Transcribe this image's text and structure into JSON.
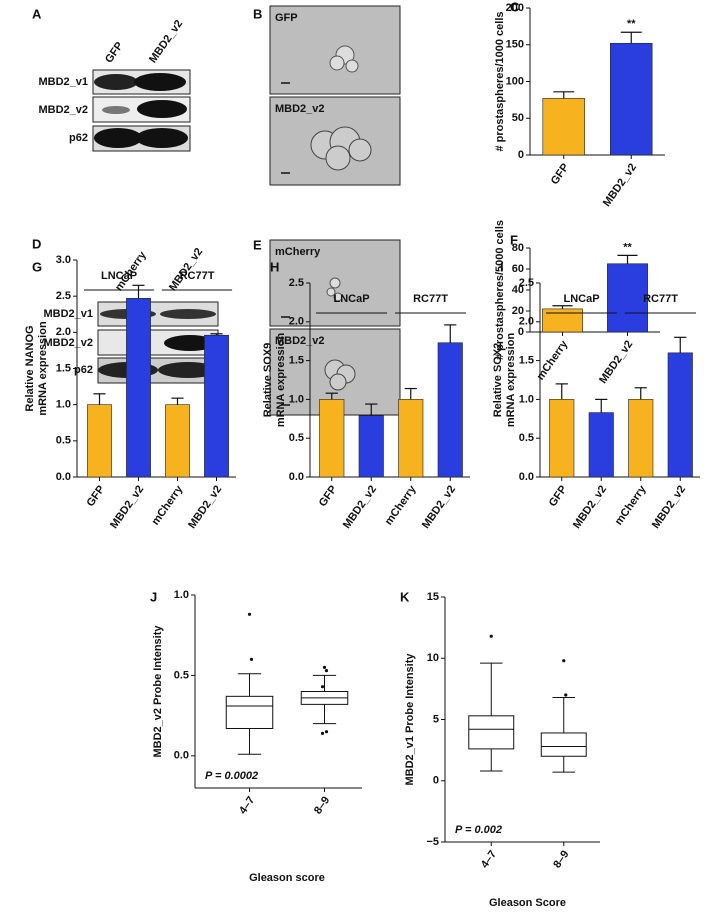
{
  "figure": {
    "blots": [
      {
        "panel": "A",
        "lanes": [
          "GFP",
          "MBD2_v2"
        ],
        "rows": [
          "MBD2_v1",
          "MBD2_v2",
          "p62"
        ]
      },
      {
        "panel": "D",
        "lanes": [
          "mCherry",
          "MBD2_v2"
        ],
        "rows": [
          "MBD2_v1",
          "MBD2_v2",
          "p62"
        ]
      }
    ],
    "images": [
      {
        "panel": "B",
        "labels": [
          "GFP",
          "MBD2_v2"
        ]
      },
      {
        "panel": "E",
        "labels": [
          "mCherry",
          "MBD2_v2"
        ]
      }
    ]
  },
  "chart_data": [
    {
      "panel": "C",
      "type": "bar",
      "ylabel": "# prostaspheres/1000 cells",
      "categories": [
        "GFP",
        "MBD2_v2"
      ],
      "values": [
        77,
        152
      ],
      "errors": [
        9,
        15
      ],
      "colors": [
        "#f7b21f",
        "#2a3ee0"
      ],
      "significance": [
        null,
        "**"
      ],
      "ylim": [
        0,
        200
      ],
      "yticks": [
        0,
        50,
        100,
        150,
        200
      ]
    },
    {
      "panel": "F",
      "type": "bar",
      "ylabel": "# prostaspheres/5000 cells",
      "categories": [
        "mCherry",
        "MBD2_v2"
      ],
      "values": [
        22,
        65
      ],
      "errors": [
        3,
        8
      ],
      "colors": [
        "#f7b21f",
        "#2a3ee0"
      ],
      "significance": [
        null,
        "**"
      ],
      "ylim": [
        0,
        80
      ],
      "yticks": [
        0,
        20,
        40,
        60,
        80
      ]
    },
    {
      "panel": "G",
      "type": "bar",
      "ylabel": [
        "Relative NANOG",
        "mRNA expression"
      ],
      "groups": [
        "LNCaP",
        "RC77T"
      ],
      "categories": [
        "GFP",
        "MBD2_v2",
        "mCherry",
        "MBD2_v2"
      ],
      "values": [
        1.0,
        2.47,
        1.0,
        1.96
      ],
      "errors": [
        0.15,
        0.18,
        0.09,
        0.02
      ],
      "colors": [
        "#f7b21f",
        "#2a3ee0",
        "#f7b21f",
        "#2a3ee0"
      ],
      "ylim": [
        0,
        3
      ],
      "yticks": [
        {
          "value": 0,
          "label": "0.0"
        },
        {
          "value": 0.5,
          "label": "0.5"
        },
        {
          "value": 1,
          "label": "1.0"
        },
        {
          "value": 1.5,
          "label": "1.5"
        },
        {
          "value": 2,
          "label": "2.0"
        },
        {
          "value": 2.5,
          "label": "2.5"
        },
        {
          "value": 3,
          "label": "3.0"
        }
      ]
    },
    {
      "panel": "H",
      "type": "bar",
      "ylabel": [
        "Relative SOX9",
        "mRNA expression"
      ],
      "groups": [
        "LNCaP",
        "RC77T"
      ],
      "categories": [
        "GFP",
        "MBD2_v2",
        "mCherry",
        "MBD2_v2"
      ],
      "values": [
        1.0,
        0.79,
        1.0,
        1.73
      ],
      "errors": [
        0.08,
        0.15,
        0.14,
        0.23
      ],
      "colors": [
        "#f7b21f",
        "#2a3ee0",
        "#f7b21f",
        "#2a3ee0"
      ],
      "ylim": [
        0,
        2.5
      ],
      "yticks": [
        {
          "value": 0,
          "label": "0.0"
        },
        {
          "value": 0.5,
          "label": "0.5"
        },
        {
          "value": 1,
          "label": "1.0"
        },
        {
          "value": 1.5,
          "label": "1.5"
        },
        {
          "value": 2,
          "label": "2.0"
        },
        {
          "value": 2.5,
          "label": "2.5"
        }
      ]
    },
    {
      "panel": "I",
      "type": "bar",
      "ylabel": [
        "Relative SOX2",
        "mRNA expression"
      ],
      "groups": [
        "LNCaP",
        "RC77T"
      ],
      "categories": [
        "GFP",
        "MBD2_v2",
        "mCherry",
        "MBD2_v2"
      ],
      "values": [
        1.0,
        0.83,
        1.0,
        1.6
      ],
      "errors": [
        0.2,
        0.17,
        0.15,
        0.2
      ],
      "colors": [
        "#f7b21f",
        "#2a3ee0",
        "#f7b21f",
        "#2a3ee0"
      ],
      "ylim": [
        0,
        2.5
      ],
      "yticks": [
        {
          "value": 0,
          "label": "0.0"
        },
        {
          "value": 0.5,
          "label": "0.5"
        },
        {
          "value": 1,
          "label": "1.0"
        },
        {
          "value": 1.5,
          "label": "1.5"
        },
        {
          "value": 2,
          "label": "2.0"
        },
        {
          "value": 2.5,
          "label": "2.5"
        }
      ]
    },
    {
      "panel": "J",
      "type": "box",
      "ylabel": "MBD2_v2 Probe Intensity",
      "xlabel": "Gleason score",
      "annotation": "P = 0.0002",
      "categories": [
        "4–7",
        "8–9"
      ],
      "boxes": [
        {
          "whislo": 0.01,
          "q1": 0.17,
          "med": 0.31,
          "q3": 0.37,
          "whishi": 0.51,
          "fliers": [
            0.88,
            0.6
          ]
        },
        {
          "whislo": 0.2,
          "q1": 0.32,
          "med": 0.36,
          "q3": 0.4,
          "whishi": 0.5,
          "fliers": [
            0.55,
            0.53,
            0.43,
            0.15,
            0.14
          ]
        }
      ],
      "ylim": [
        -0.2,
        1.0
      ],
      "yticks": [
        {
          "value": 0,
          "label": "0.0"
        },
        {
          "value": 0.5,
          "label": "0.5"
        },
        {
          "value": 1,
          "label": "1.0"
        }
      ]
    },
    {
      "panel": "K",
      "type": "box",
      "ylabel": "MBD2_v1 Probe Intensity",
      "xlabel": "Gleason Score",
      "annotation": "P = 0.002",
      "categories": [
        "4–7",
        "8–9"
      ],
      "boxes": [
        {
          "whislo": 0.8,
          "q1": 2.6,
          "med": 4.2,
          "q3": 5.3,
          "whishi": 9.6,
          "fliers": [
            11.8
          ]
        },
        {
          "whislo": 0.7,
          "q1": 2.0,
          "med": 2.8,
          "q3": 3.9,
          "whishi": 6.8,
          "fliers": [
            9.8,
            7.0
          ]
        }
      ],
      "ylim": [
        -5,
        15
      ],
      "yticks": [
        {
          "value": -5,
          "label": "−5"
        },
        0,
        5,
        10,
        15
      ]
    }
  ]
}
